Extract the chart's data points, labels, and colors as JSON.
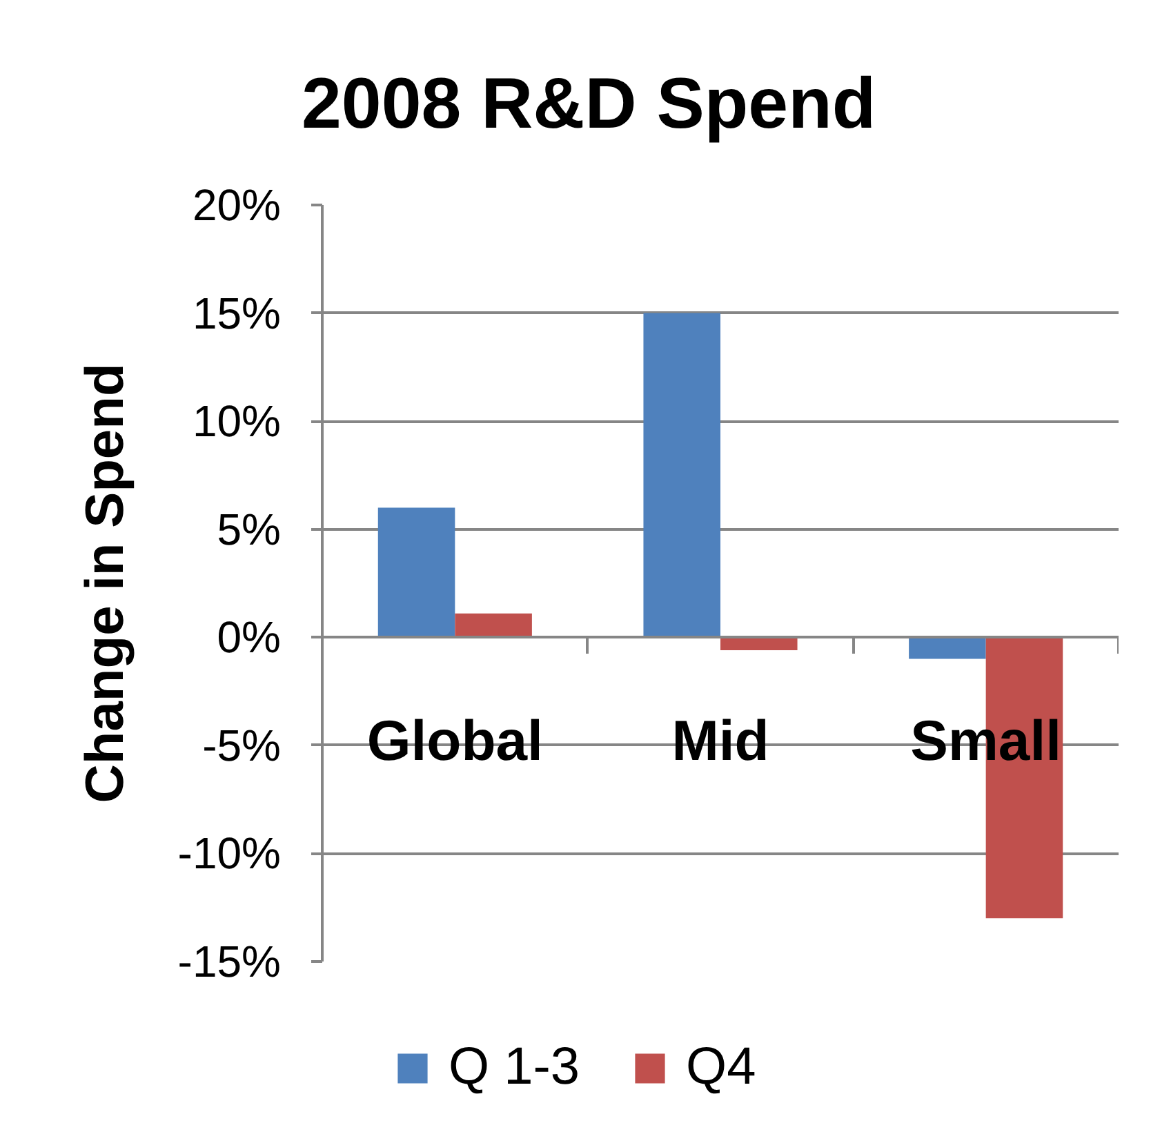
{
  "chart_data": {
    "type": "bar",
    "title": "2008 R&D Spend",
    "ylabel": "Change in Spend",
    "categories": [
      "Global",
      "Mid",
      "Small"
    ],
    "series": [
      {
        "name": "Q 1-3",
        "color": "#4f81bd",
        "values": [
          6,
          15,
          -1
        ]
      },
      {
        "name": "Q4",
        "color": "#c0504d",
        "values": [
          1.1,
          -0.6,
          -13
        ]
      }
    ],
    "ylim": [
      -15,
      20
    ],
    "yticks": [
      {
        "value": -15,
        "label": "-15%"
      },
      {
        "value": -10,
        "label": "-10%"
      },
      {
        "value": -5,
        "label": "-5%"
      },
      {
        "value": 0,
        "label": "0%"
      },
      {
        "value": 5,
        "label": "5%"
      },
      {
        "value": 10,
        "label": "10%"
      },
      {
        "value": 15,
        "label": "15%"
      },
      {
        "value": 20,
        "label": "20%"
      }
    ],
    "grid": "y",
    "legend": "bottom"
  }
}
